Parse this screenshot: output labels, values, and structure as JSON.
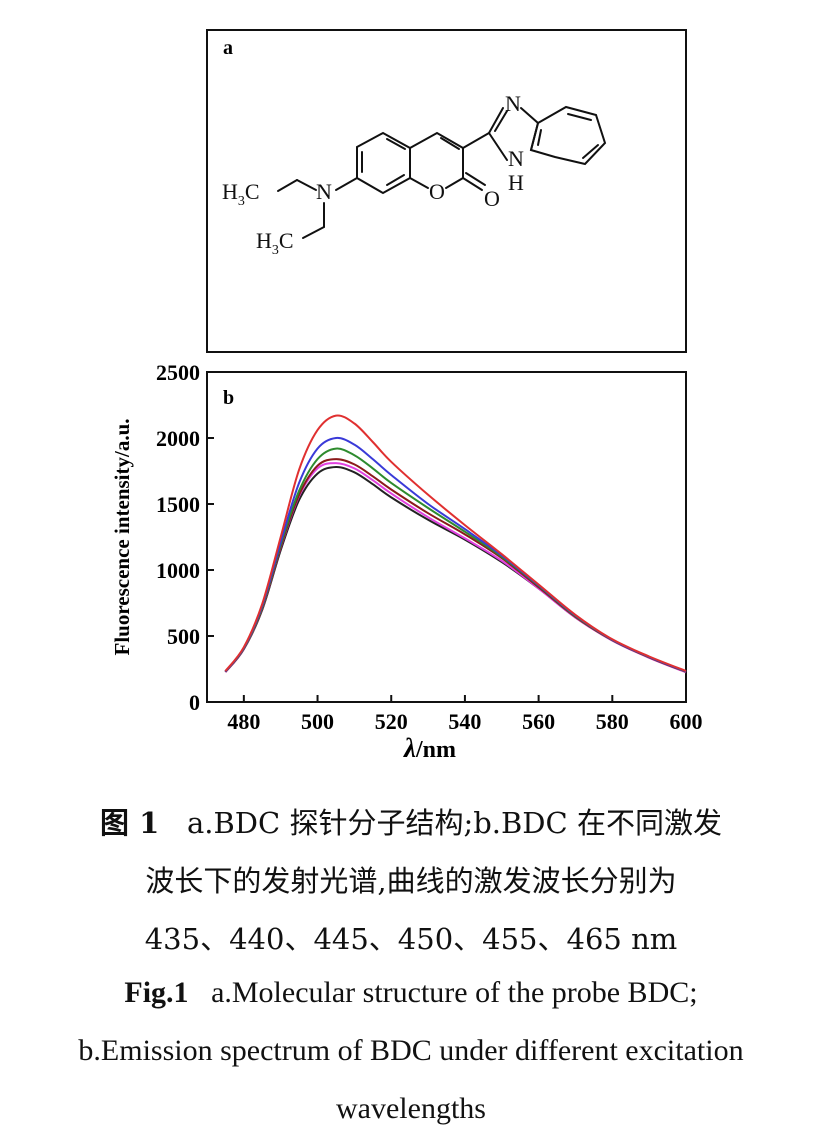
{
  "panel_a": {
    "label": "a",
    "atoms": {
      "n_amine": "N",
      "o_ring": "O",
      "o_carbonyl": "O",
      "n_imine": "N",
      "n_nh": "N",
      "h_nh": "H",
      "ethyl1_c": "H",
      "ethyl1_sub": "3",
      "ethyl1_c2": "C",
      "ethyl2_c": "H",
      "ethyl2_sub": "3",
      "ethyl2_c2": "C"
    }
  },
  "chart_data": {
    "type": "line",
    "panel_label": "b",
    "xlabel_symbol": "λ",
    "xlabel_unit": "/nm",
    "ylabel": "Fluorescence intensity/a.u.",
    "xlim": [
      470,
      600
    ],
    "ylim": [
      0,
      2500
    ],
    "x_ticks": [
      480,
      500,
      520,
      540,
      560,
      580,
      600
    ],
    "y_ticks": [
      0,
      500,
      1000,
      1500,
      2000,
      2500
    ],
    "grid": false,
    "x": [
      475,
      480,
      485,
      490,
      495,
      500,
      505,
      510,
      515,
      520,
      530,
      540,
      550,
      560,
      570,
      580,
      590,
      600
    ],
    "series": [
      {
        "color": "#222222",
        "values": [
          230,
          400,
          700,
          1150,
          1530,
          1730,
          1780,
          1740,
          1650,
          1550,
          1380,
          1230,
          1060,
          860,
          640,
          470,
          340,
          230
        ]
      },
      {
        "color": "#e040e0",
        "values": [
          225,
          400,
          710,
          1170,
          1560,
          1770,
          1810,
          1770,
          1680,
          1580,
          1400,
          1240,
          1070,
          860,
          640,
          465,
          335,
          225
        ]
      },
      {
        "color": "#8b1a1a",
        "values": [
          228,
          402,
          712,
          1175,
          1570,
          1790,
          1840,
          1800,
          1710,
          1610,
          1430,
          1270,
          1090,
          870,
          645,
          468,
          338,
          228
        ]
      },
      {
        "color": "#2e8b2e",
        "values": [
          230,
          405,
          720,
          1190,
          1600,
          1840,
          1920,
          1870,
          1770,
          1660,
          1470,
          1290,
          1100,
          880,
          650,
          470,
          340,
          230
        ]
      },
      {
        "color": "#3a3ad8",
        "values": [
          232,
          410,
          730,
          1210,
          1660,
          1920,
          2000,
          1950,
          1840,
          1720,
          1500,
          1310,
          1110,
          885,
          655,
          472,
          342,
          232
        ]
      },
      {
        "color": "#e03030",
        "values": [
          235,
          415,
          745,
          1250,
          1760,
          2060,
          2170,
          2110,
          1970,
          1820,
          1570,
          1340,
          1120,
          890,
          660,
          475,
          345,
          235
        ]
      }
    ]
  },
  "caption": {
    "cn_fig": "图 1",
    "cn_line1": "a.BDC 探针分子结构;b.BDC 在不同激发",
    "cn_line2": "波长下的发射光谱,曲线的激发波长分别为",
    "cn_line3": "435、440、445、450、455、465 nm",
    "en_fig": "Fig.1",
    "en_line1": "a.Molecular structure of the probe BDC;",
    "en_line2": "b.Emission spectrum of BDC under different excitation",
    "en_line3": "wavelengths"
  }
}
